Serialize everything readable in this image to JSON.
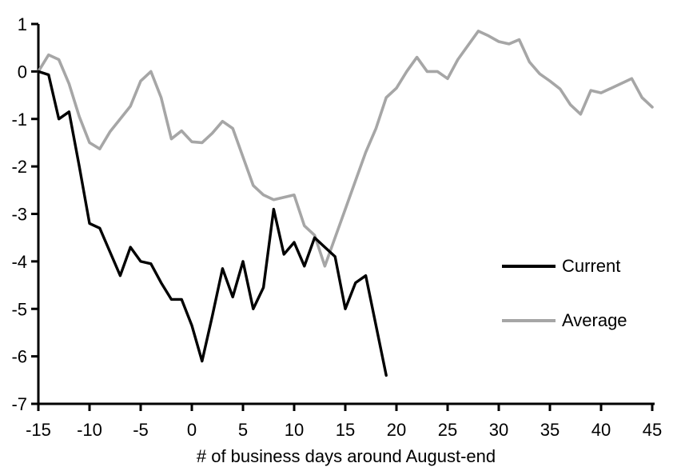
{
  "chart_data": {
    "type": "line",
    "title": "",
    "xlabel": "# of business days around August-end",
    "ylabel": "",
    "xlim": [
      -15,
      45
    ],
    "ylim": [
      -7,
      1
    ],
    "xticks": [
      -15,
      -10,
      -5,
      0,
      5,
      10,
      15,
      20,
      25,
      30,
      35,
      40,
      45
    ],
    "yticks": [
      1,
      0,
      -1,
      -2,
      -3,
      -4,
      -5,
      -6,
      -7
    ],
    "grid": false,
    "legend_position": "right-middle",
    "series": [
      {
        "name": "Current",
        "color": "#000000",
        "stroke_width": 3.4,
        "x": [
          -15,
          -14,
          -13,
          -12,
          -11,
          -10,
          -9,
          -8,
          -7,
          -6,
          -5,
          -4,
          -3,
          -2,
          -1,
          0,
          1,
          2,
          3,
          4,
          5,
          6,
          7,
          8,
          9,
          10,
          11,
          12,
          13,
          14,
          15,
          16,
          17,
          18,
          19
        ],
        "values": [
          0,
          -0.07,
          -1.0,
          -0.85,
          -2.0,
          -3.2,
          -3.3,
          -3.8,
          -4.3,
          -3.7,
          -4.0,
          -4.05,
          -4.45,
          -4.8,
          -4.8,
          -5.35,
          -6.1,
          -5.15,
          -4.15,
          -4.75,
          -4.0,
          -5.0,
          -4.55,
          -2.9,
          -3.85,
          -3.6,
          -4.1,
          -3.5,
          -3.7,
          -3.9,
          -5.0,
          -4.45,
          -4.3,
          -5.35,
          -6.4
        ]
      },
      {
        "name": "Average",
        "color": "#A6A6A6",
        "stroke_width": 3.6,
        "x": [
          -15,
          -14,
          -13,
          -12,
          -11,
          -10,
          -9,
          -8,
          -7,
          -6,
          -5,
          -4,
          -3,
          -2,
          -1,
          0,
          1,
          2,
          3,
          4,
          5,
          6,
          7,
          8,
          9,
          10,
          11,
          12,
          13,
          14,
          15,
          16,
          17,
          18,
          19,
          20,
          21,
          22,
          23,
          24,
          25,
          26,
          27,
          28,
          29,
          30,
          31,
          32,
          33,
          34,
          35,
          36,
          37,
          38,
          39,
          40,
          41,
          42,
          43,
          44,
          45
        ],
        "values": [
          0,
          0.35,
          0.25,
          -0.26,
          -0.95,
          -1.5,
          -1.63,
          -1.27,
          -1.0,
          -0.73,
          -0.2,
          0.0,
          -0.55,
          -1.42,
          -1.25,
          -1.48,
          -1.5,
          -1.3,
          -1.05,
          -1.2,
          -1.8,
          -2.4,
          -2.6,
          -2.7,
          -2.65,
          -2.6,
          -3.25,
          -3.45,
          -4.1,
          -3.5,
          -2.9,
          -2.3,
          -1.7,
          -1.2,
          -0.55,
          -0.35,
          0.0,
          0.3,
          0.0,
          0.0,
          -0.15,
          0.25,
          0.55,
          0.85,
          0.75,
          0.63,
          0.58,
          0.67,
          0.2,
          -0.05,
          -0.2,
          -0.37,
          -0.7,
          -0.9,
          -0.4,
          -0.45,
          -0.35,
          -0.25,
          -0.15,
          -0.55,
          -0.75
        ]
      }
    ]
  },
  "legend": {
    "current_label": "Current",
    "average_label": "Average"
  },
  "colors": {
    "current": "#000000",
    "average": "#A6A6A6",
    "axis": "#000000",
    "background": "#FFFFFF",
    "tick_text": "#000000"
  },
  "axis_text": {
    "tick_font_size": "22"
  }
}
